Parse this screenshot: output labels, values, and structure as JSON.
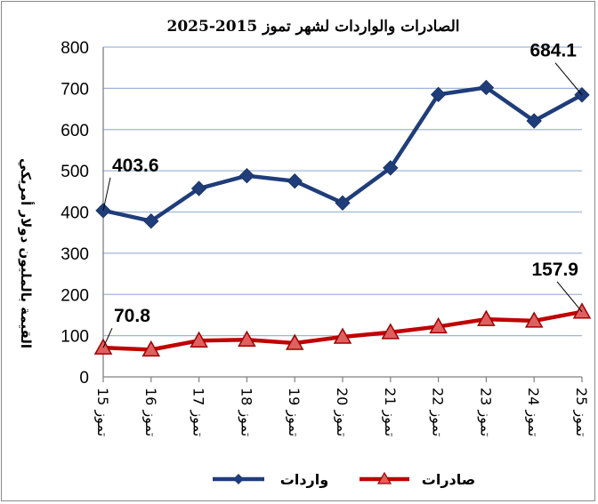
{
  "chart_data": {
    "type": "line",
    "title": "الصادرات والواردات لشهر تموز 2015-2025",
    "ylabel": "القيمة بالمليون دولار أمريكي",
    "xlabel": "",
    "ylim": [
      0,
      800
    ],
    "yticks": [
      0,
      100,
      200,
      300,
      400,
      500,
      600,
      700,
      800
    ],
    "categories": [
      "تموز 15",
      "تموز 16",
      "تموز 17",
      "تموز 18",
      "تموز 19",
      "تموز 20",
      "تموز 21",
      "تموز 22",
      "تموز 23",
      "تموز 24",
      "تموز 25"
    ],
    "grid": true,
    "legend": "bottom",
    "series": [
      {
        "name": "واردات",
        "color": "#1f3d7a",
        "marker": "diamond",
        "values": [
          403.6,
          378,
          457,
          488,
          475,
          422,
          507,
          685,
          702,
          621,
          684.1
        ]
      },
      {
        "name": "صادرات",
        "color": "#c00000",
        "marker": "triangle",
        "values": [
          70.8,
          66,
          88,
          90,
          82,
          97,
          108,
          122,
          140,
          136,
          157.9
        ]
      }
    ],
    "annotations": [
      {
        "series": 0,
        "index": 0,
        "text": "403.6"
      },
      {
        "series": 0,
        "index": 10,
        "text": "684.1"
      },
      {
        "series": 1,
        "index": 0,
        "text": "70.8"
      },
      {
        "series": 1,
        "index": 10,
        "text": "157.9"
      }
    ]
  }
}
